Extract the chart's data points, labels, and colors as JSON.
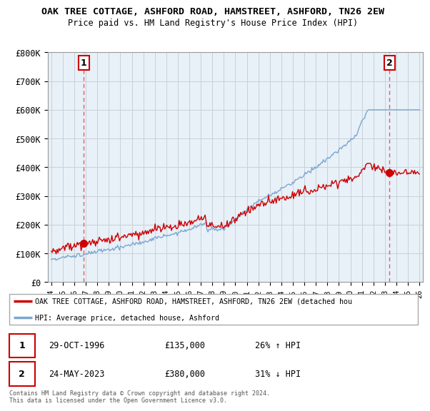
{
  "title": "OAK TREE COTTAGE, ASHFORD ROAD, HAMSTREET, ASHFORD, TN26 2EW",
  "subtitle": "Price paid vs. HM Land Registry's House Price Index (HPI)",
  "ylabel_values": [
    "£0",
    "£100K",
    "£200K",
    "£300K",
    "£400K",
    "£500K",
    "£600K",
    "£700K",
    "£800K"
  ],
  "yticks": [
    0,
    100000,
    200000,
    300000,
    400000,
    500000,
    600000,
    700000,
    800000
  ],
  "ylim": [
    0,
    800000
  ],
  "xlim_start": 1993.7,
  "xlim_end": 2026.3,
  "marker1_x": 1996.83,
  "marker1_y": 135000,
  "marker1_label": "1",
  "marker2_x": 2023.39,
  "marker2_y": 380000,
  "marker2_label": "2",
  "sale1_date": "29-OCT-1996",
  "sale1_price": "£135,000",
  "sale1_hpi": "26% ↑ HPI",
  "sale2_date": "24-MAY-2023",
  "sale2_price": "£380,000",
  "sale2_hpi": "31% ↓ HPI",
  "legend_line1": "OAK TREE COTTAGE, ASHFORD ROAD, HAMSTREET, ASHFORD, TN26 2EW (detached hou",
  "legend_line2": "HPI: Average price, detached house, Ashford",
  "copyright_text": "Contains HM Land Registry data © Crown copyright and database right 2024.\nThis data is licensed under the Open Government Licence v3.0.",
  "line_color_property": "#cc0000",
  "line_color_hpi": "#7ba7d0",
  "background_color": "#e8f0f8",
  "grid_color": "#c8cfd8",
  "marker_box_color": "#cc0000",
  "dashed_line_color": "#e06060"
}
